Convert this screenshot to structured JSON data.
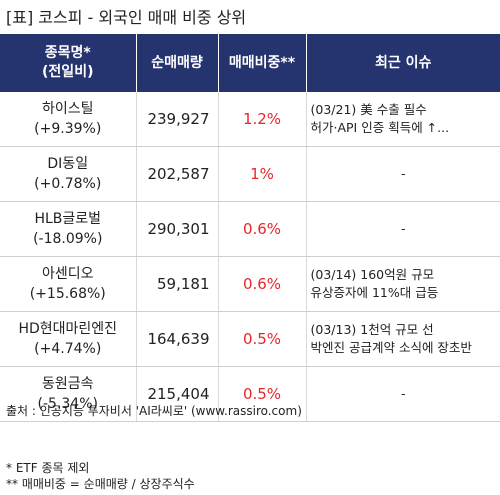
{
  "title": "[표] 코스피 - 외국인 매매 비중 상위",
  "headers": {
    "name_line1": "종목명*",
    "name_line2": "(전일비)",
    "volume": "순매매량",
    "ratio": "매매비중**",
    "issue": "최근 이슈"
  },
  "rows": [
    {
      "name": "하이스틸",
      "change": "(+9.39%)",
      "volume": "239,927",
      "ratio": "1.2%",
      "issue_line1": "(03/21) 美 수출 필수",
      "issue_line2": "허가·API 인증 획득에 ↑..."
    },
    {
      "name": "DI동일",
      "change": "(+0.78%)",
      "volume": "202,587",
      "ratio": "1%",
      "issue_line1": "-",
      "issue_line2": ""
    },
    {
      "name": "HLB글로벌",
      "change": "(-18.09%)",
      "volume": "290,301",
      "ratio": "0.6%",
      "issue_line1": "-",
      "issue_line2": ""
    },
    {
      "name": "아센디오",
      "change": "(+15.68%)",
      "volume": "59,181",
      "ratio": "0.6%",
      "issue_line1": "(03/14) 160억원 규모",
      "issue_line2": "유상증자에 11%대 급등"
    },
    {
      "name": "HD현대마린엔진",
      "change": "(+4.74%)",
      "volume": "164,639",
      "ratio": "0.5%",
      "issue_line1": "(03/13) 1천억 규모 선",
      "issue_line2": "박엔진 공급계약 소식에 장초반"
    },
    {
      "name": "동원금속",
      "change": "(-5.34%)",
      "volume": "215,404",
      "ratio": "0.5%",
      "issue_line1": "-",
      "issue_line2": ""
    }
  ],
  "footer": {
    "source": "출처 : 인공지능 투자비서 'AI라씨로' (www.rassiro.com)",
    "note1": "* ETF 종목 제외",
    "note2": "** 매매비중 = 순매매량 / 상장주식수"
  }
}
